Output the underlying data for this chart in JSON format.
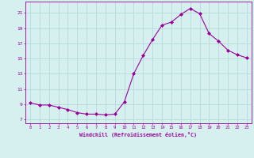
{
  "x": [
    0,
    1,
    2,
    3,
    4,
    5,
    6,
    7,
    8,
    9,
    10,
    11,
    12,
    13,
    14,
    15,
    16,
    17,
    18,
    19,
    20,
    21,
    22,
    23
  ],
  "y": [
    9.2,
    8.9,
    8.9,
    8.6,
    8.3,
    7.9,
    7.7,
    7.7,
    7.6,
    7.7,
    9.3,
    13.0,
    15.4,
    17.5,
    19.4,
    19.8,
    20.8,
    21.6,
    20.9,
    18.3,
    17.3,
    16.1,
    15.5,
    15.1
  ],
  "line_color": "#990099",
  "marker": "D",
  "marker_size": 2,
  "bg_color": "#d6f0f0",
  "grid_color": "#b8dada",
  "xlabel": "Windchill (Refroidissement éolien,°C)",
  "ylabel_ticks": [
    7,
    9,
    11,
    13,
    15,
    17,
    19,
    21
  ],
  "xlim": [
    -0.5,
    23.5
  ],
  "ylim": [
    6.5,
    22.5
  ],
  "tick_label_color": "#990099",
  "axis_label_color": "#990099",
  "font_family": "monospace",
  "xtick_labels": [
    "0",
    "1",
    "2",
    "3",
    "4",
    "5",
    "6",
    "7",
    "8",
    "9",
    "10",
    "11",
    "12",
    "13",
    "14",
    "15",
    "16",
    "17",
    "18",
    "19",
    "20",
    "21",
    "22",
    "23"
  ]
}
